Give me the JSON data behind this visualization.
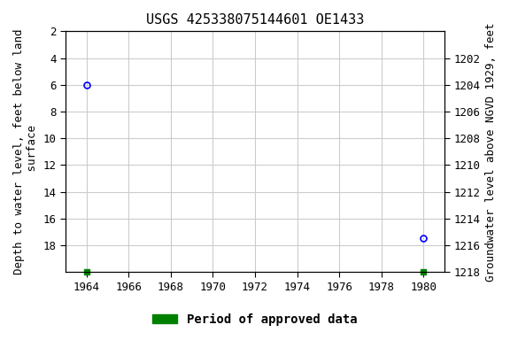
{
  "title": "USGS 425338075144601 OE1433",
  "ylabel_left": "Depth to water level, feet below land\n surface",
  "ylabel_right": "Groundwater level above NGVD 1929, feet",
  "xlim": [
    1963.0,
    1981.0
  ],
  "xticks": [
    1964,
    1966,
    1968,
    1970,
    1972,
    1974,
    1976,
    1978,
    1980
  ],
  "ylim_left": [
    2,
    20
  ],
  "ylim_right": [
    1218,
    1200
  ],
  "yticks_left": [
    2,
    4,
    6,
    8,
    10,
    12,
    14,
    16,
    18
  ],
  "yticks_right": [
    1218,
    1216,
    1214,
    1212,
    1210,
    1208,
    1206,
    1204,
    1202
  ],
  "data_points": [
    {
      "year": 1964.0,
      "depth": 6.0
    },
    {
      "year": 1980.0,
      "depth": 17.5
    }
  ],
  "green_markers": [
    {
      "year": 1964.0
    },
    {
      "year": 1980.0
    }
  ],
  "point_color": "#0000ff",
  "green_color": "#008000",
  "grid_color": "#cccccc",
  "bg_color": "#ffffff",
  "legend_label": "Period of approved data",
  "title_fontsize": 11,
  "label_fontsize": 9,
  "tick_fontsize": 9
}
